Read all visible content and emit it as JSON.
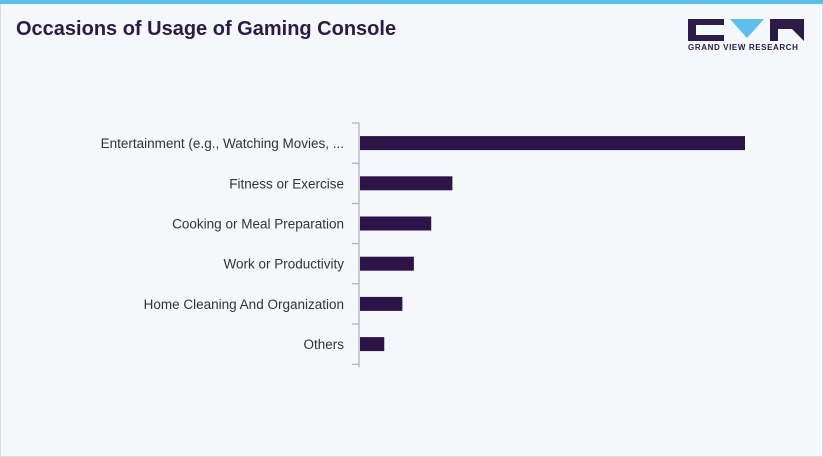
{
  "header": {
    "title": "Occasions of Usage of Gaming Console",
    "logo_text": "GRAND VIEW RESEARCH"
  },
  "colors": {
    "bar": "#2d1448",
    "accent": "#5bc0eb",
    "title": "#2c1a47"
  },
  "chart_data": {
    "type": "bar",
    "orientation": "horizontal",
    "categories": [
      "Entertainment (e.g., Watching Movies, ...",
      "Fitness or Exercise",
      "Cooking or Meal Preparation",
      "Work or Productivity",
      "Home Cleaning And Organization",
      "Others"
    ],
    "values": [
      100,
      24,
      18.5,
      14,
      11,
      6.3
    ],
    "xlim": [
      0,
      100
    ],
    "grid": false,
    "legend": "none"
  }
}
